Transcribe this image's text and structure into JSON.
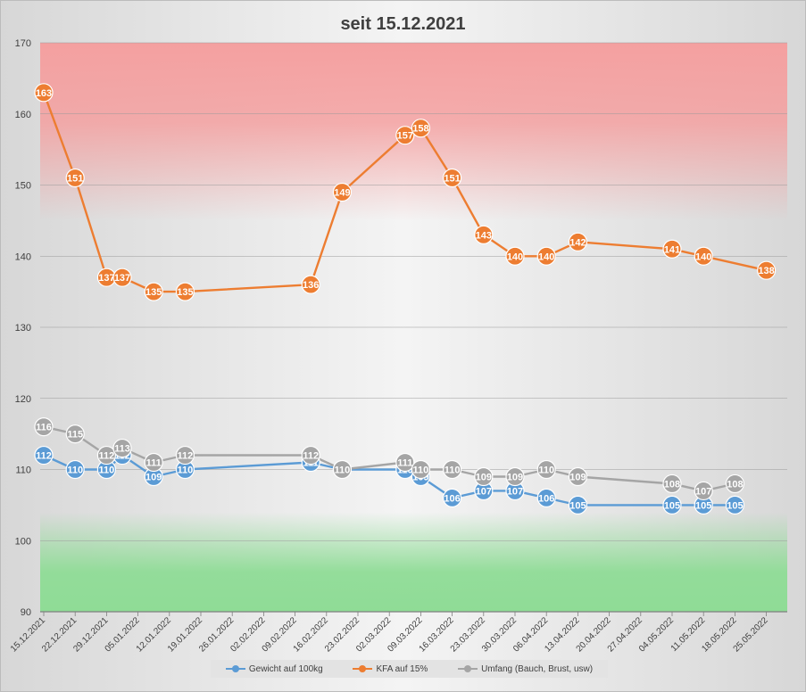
{
  "chart_data": {
    "type": "line",
    "title": "seit 15.12.2021",
    "ylim": [
      90,
      170
    ],
    "yticks": [
      90,
      100,
      110,
      120,
      130,
      140,
      150,
      160,
      170
    ],
    "xtick_labels": [
      "15.12.2021",
      "22.12.2021",
      "29.12.2021",
      "05.01.2022",
      "12.01.2022",
      "19.01.2022",
      "26.01.2022",
      "02.02.2022",
      "09.02.2022",
      "16.02.2022",
      "23.02.2022",
      "02.03.2022",
      "09.03.2022",
      "16.03.2022",
      "23.03.2022",
      "30.03.2022",
      "06.04.2022",
      "13.04.2022",
      "20.04.2022",
      "27.04.2022",
      "04.05.2022",
      "11.05.2022",
      "18.05.2022",
      "25.05.2022"
    ],
    "x": [
      "15.12.2021",
      "23.12.2021",
      "30.12.2021",
      "04.01.2022",
      "11.01.2022",
      "18.01.2022",
      "14.02.2022",
      "21.02.2022",
      "08.03.2022",
      "13.03.2022",
      "18.03.2022",
      "24.03.2022",
      "31.03.2022",
      "05.04.2022",
      "14.04.2022",
      "17.04.2022",
      "05.05.2022",
      "12.05.2022",
      "19.05.2022",
      "26.05.2022"
    ],
    "background_bands": [
      {
        "color": "#f4a0a0",
        "from": 145,
        "to": 170
      },
      {
        "color": "#8fdc96",
        "from": 90,
        "to": 100
      }
    ],
    "grid": true,
    "legend": "bottom",
    "series": [
      {
        "name": "Gewicht auf 100kg",
        "color": "#5b9bd5",
        "values": [
          112,
          110,
          110,
          112,
          109,
          110,
          111,
          110,
          110,
          109,
          106,
          107,
          107,
          106,
          105,
          null,
          105,
          105,
          105,
          null
        ],
        "labels": [
          "112",
          "110",
          "110",
          "112",
          "109",
          "110",
          "111",
          "110",
          "110",
          "109",
          "106",
          "107",
          "107",
          "106",
          "105",
          null,
          "105",
          "105",
          "105",
          null
        ]
      },
      {
        "name": "KFA auf 15%",
        "color": "#ed7d31",
        "values": [
          163,
          151,
          137,
          137,
          135,
          135,
          136,
          149,
          157,
          158,
          151,
          143,
          140,
          140,
          142,
          null,
          141,
          140,
          null,
          138
        ],
        "labels": [
          "163",
          "151",
          "137",
          "137",
          "135",
          "135",
          "136",
          "149",
          "157",
          "158",
          "151",
          "143",
          "140",
          "140",
          "142",
          null,
          "141",
          "140",
          null,
          "138"
        ]
      },
      {
        "name": "Umfang (Bauch, Brust, usw)",
        "color": "#a5a5a5",
        "values": [
          116,
          115,
          112,
          113,
          111,
          112,
          112,
          110,
          111,
          110,
          110,
          109,
          109,
          110,
          109,
          null,
          108,
          107,
          108,
          null
        ],
        "labels": [
          "116",
          "115",
          "112",
          "113",
          "111",
          "112",
          "112",
          "110",
          "111",
          "110",
          "110",
          "109",
          "109",
          "110",
          "109",
          null,
          "108",
          "107",
          "108",
          null
        ]
      }
    ],
    "point_x_index": [
      0,
      2,
      4,
      5,
      7,
      9,
      17,
      19,
      23,
      24,
      26,
      28,
      30,
      32,
      34,
      35,
      40,
      42,
      44,
      46
    ]
  }
}
